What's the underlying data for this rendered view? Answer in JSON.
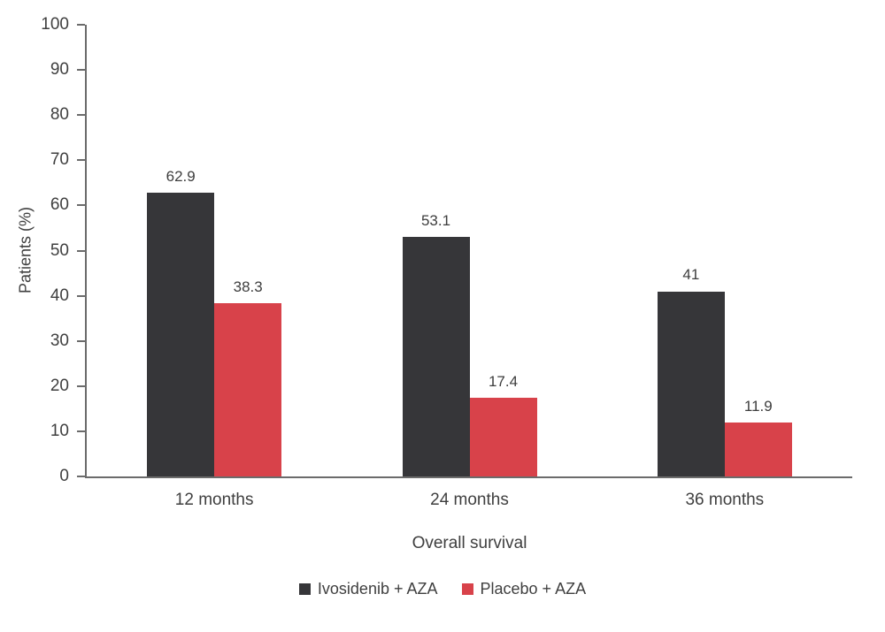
{
  "chart_data": {
    "type": "bar",
    "title": "",
    "categories": [
      "12 months",
      "24 months",
      "36 months"
    ],
    "series": [
      {
        "name": "Ivosidenib + AZA",
        "color": "#363639",
        "values": [
          62.9,
          53.1,
          41
        ]
      },
      {
        "name": "Placebo + AZA",
        "color": "#d8424a",
        "values": [
          38.3,
          17.4,
          11.9
        ]
      }
    ],
    "xlabel": "Overall survival",
    "ylabel": "Patients (%)",
    "ylim": [
      0,
      100
    ],
    "yticks": [
      0,
      10,
      20,
      30,
      40,
      50,
      60,
      70,
      80,
      90,
      100
    ],
    "grid": false,
    "legend_position": "bottom",
    "colors": {
      "axis": "#6b6b6b",
      "text": "#3f3f3f",
      "background": "#ffffff"
    }
  }
}
